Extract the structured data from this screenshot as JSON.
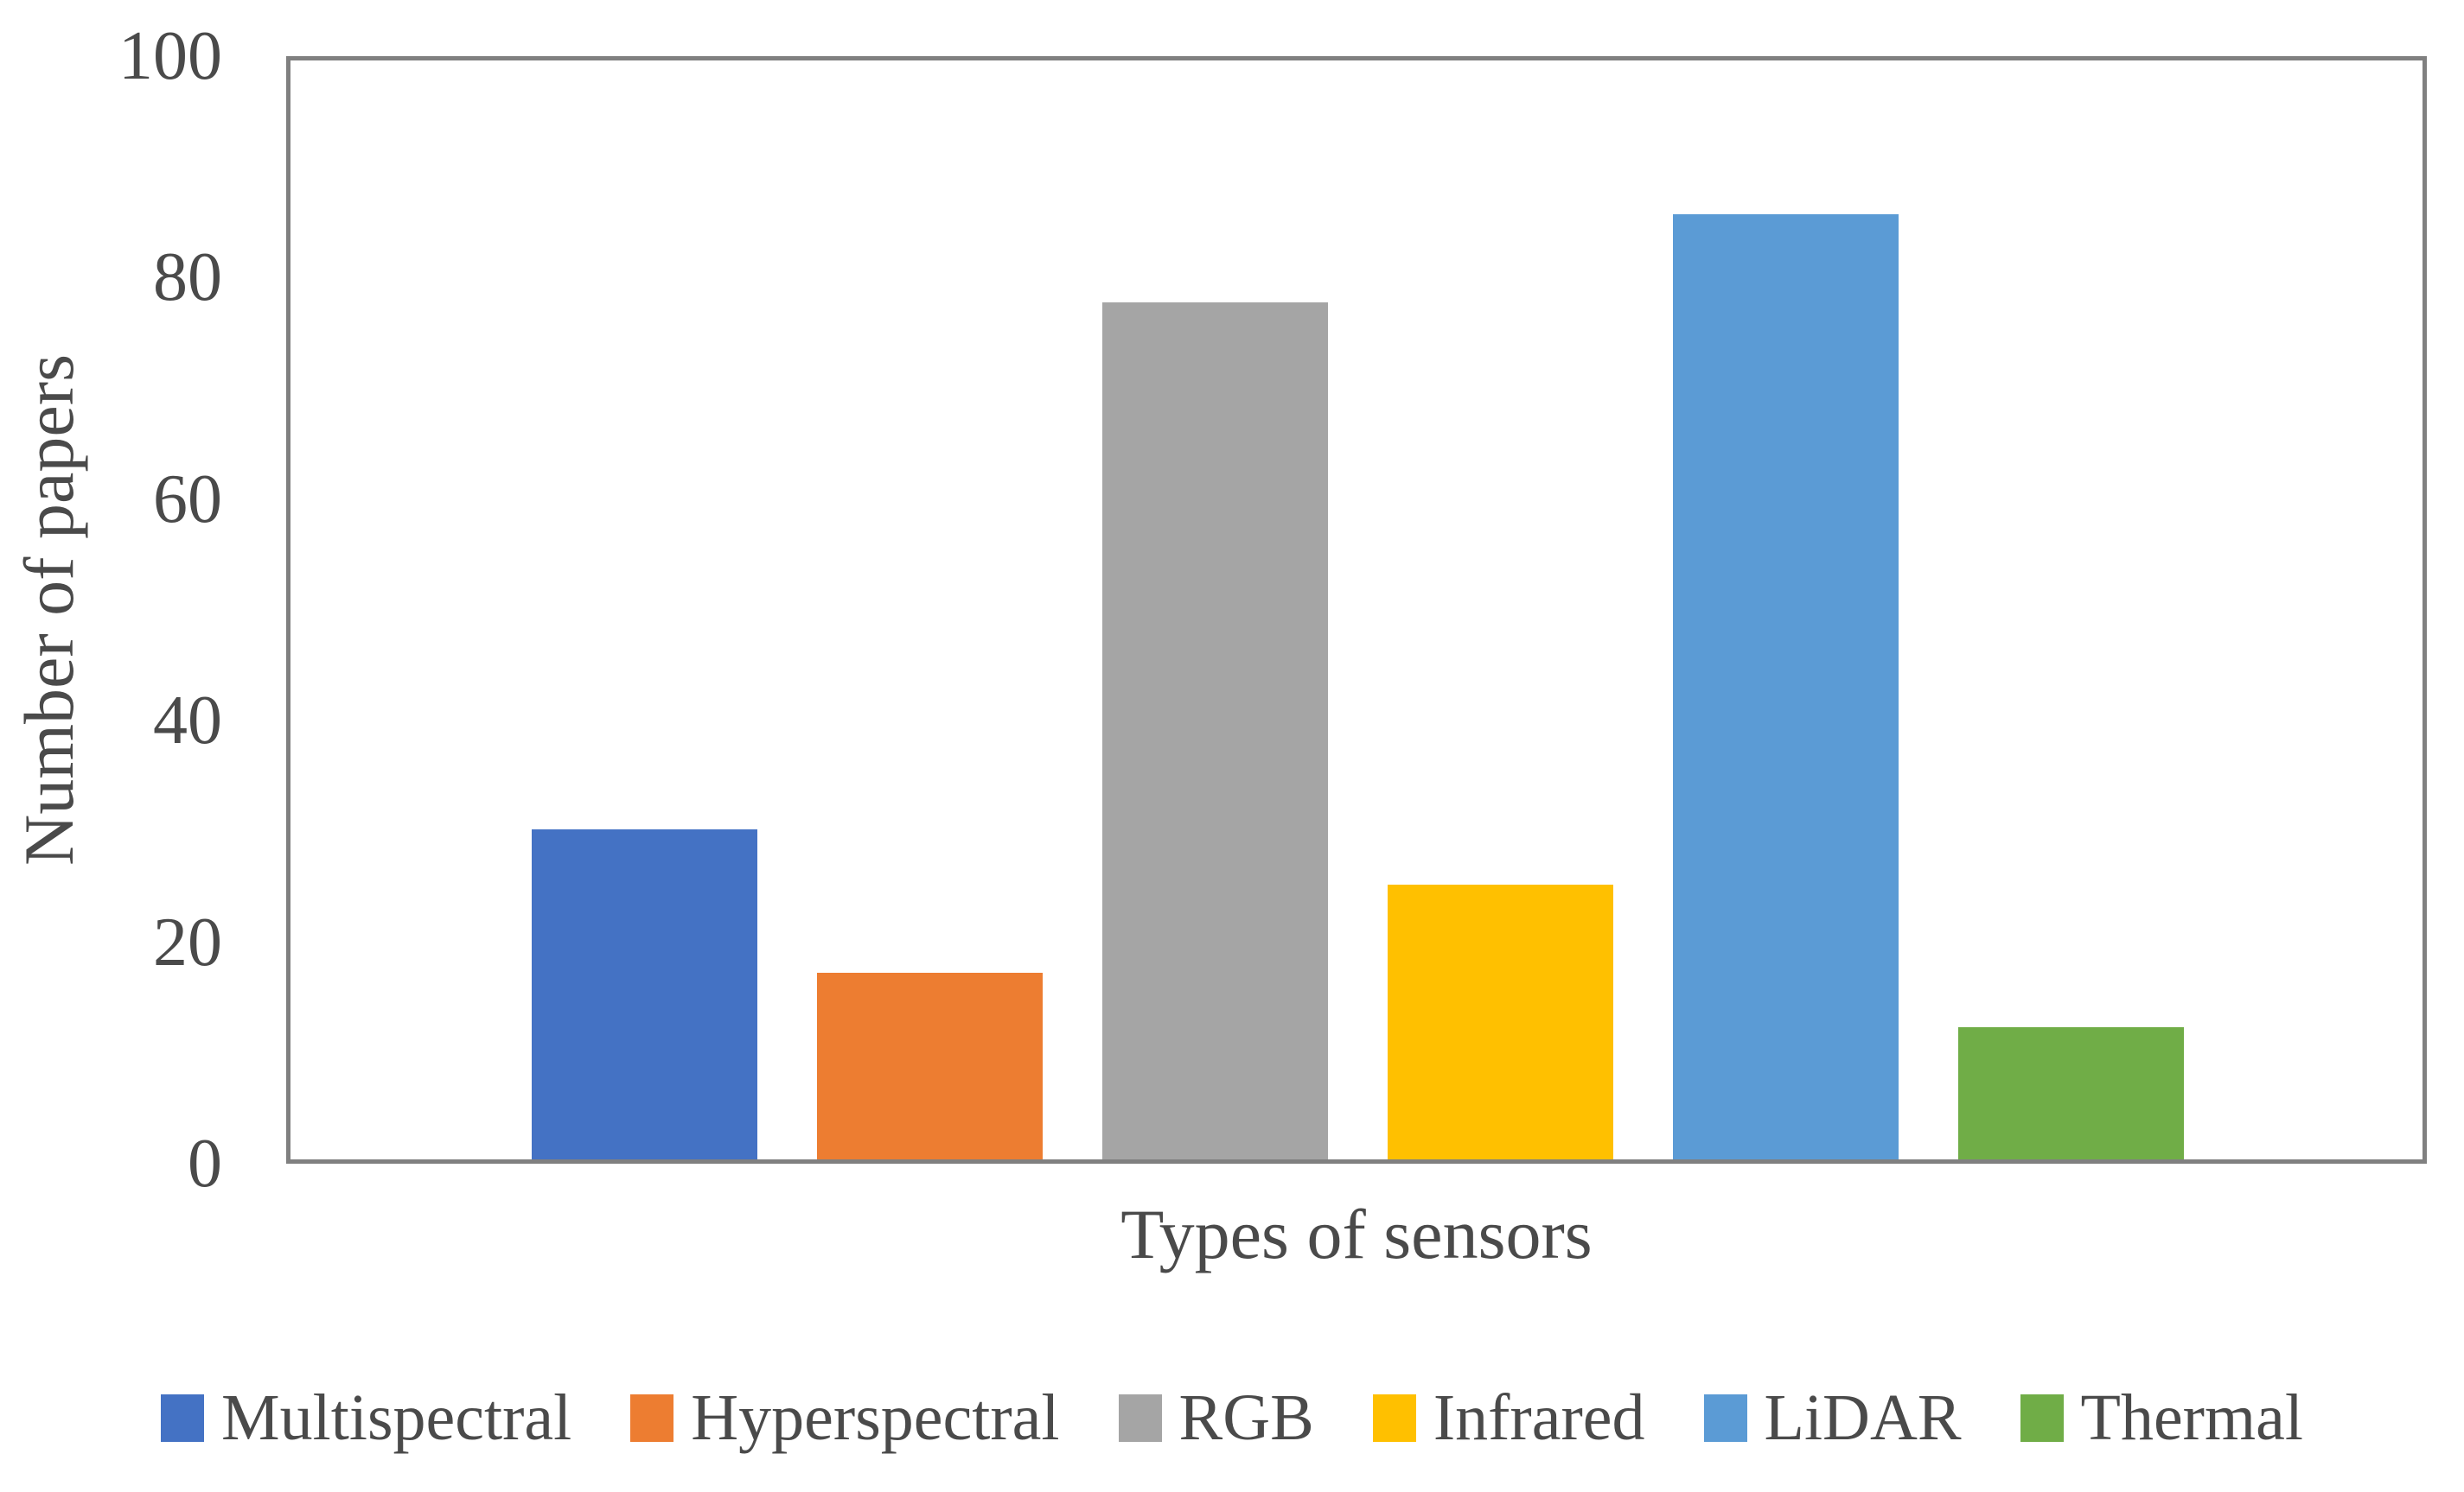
{
  "figure": {
    "background_color": "#ffffff",
    "axis_color": "#808080",
    "text_color": "#4a4a4a"
  },
  "chart_data": {
    "type": "bar",
    "categories": [
      "Multispectral",
      "Hyperspectral",
      "RGB",
      "Infrared",
      "LiDAR",
      "Thermal"
    ],
    "values": [
      30,
      17,
      78,
      25,
      86,
      12
    ],
    "colors": [
      "#4472C4",
      "#ED7D31",
      "#A5A5A5",
      "#FFC000",
      "#5B9BD5",
      "#70AD47"
    ],
    "title": "",
    "xlabel": "Types of sensors",
    "ylabel": "Number of papers",
    "ylim": [
      0,
      100
    ],
    "yticks": [
      0,
      20,
      40,
      60,
      80,
      100
    ],
    "grid": false,
    "legend_position": "bottom"
  }
}
